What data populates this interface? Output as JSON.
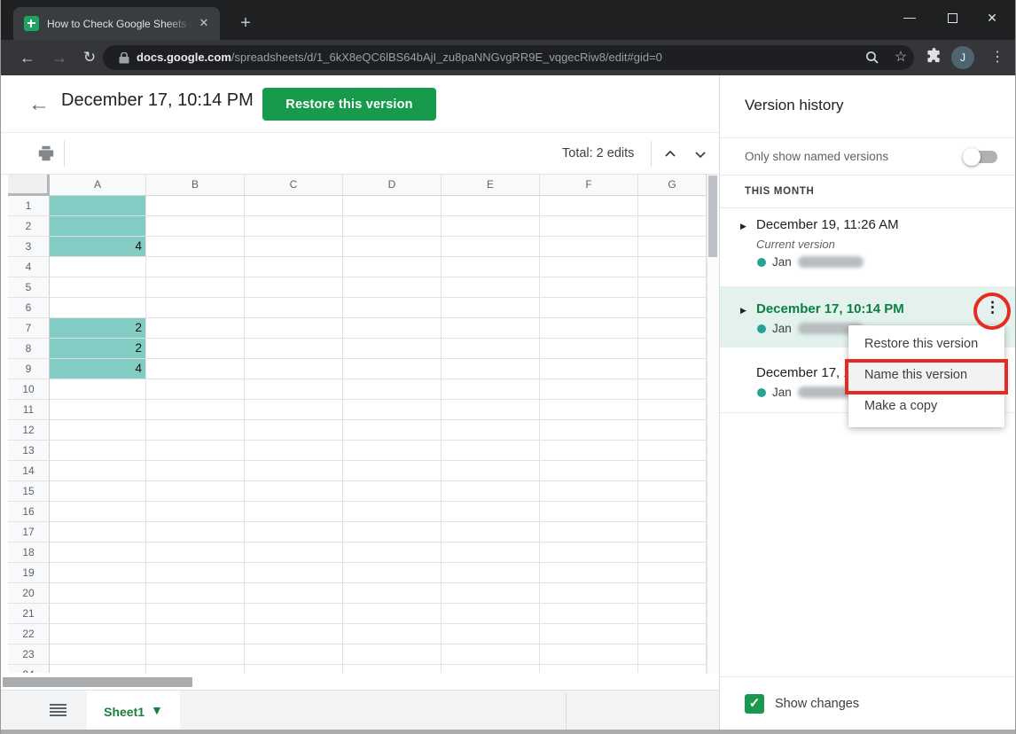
{
  "colors": {
    "accent_green": "#179a4b",
    "selected_green_text": "#0b8043",
    "highlight_teal": "#82ccc4",
    "selected_row_bg": "#e3f2ec",
    "annotation_red": "#e62b22",
    "author_dot": "#27a295"
  },
  "browser": {
    "tab_title": "How to Check Google Sheets Edi",
    "url_host": "docs.google.com",
    "url_path": "/spreadsheets/d/1_6kX8eQC6lBS64bAjI_zu8paNNGvgRR9E_vqgecRiw8/edit#gid=0",
    "avatar_initial": "J"
  },
  "icons": {
    "back": "←",
    "forward": "→",
    "reload": "↻",
    "tab_close": "✕",
    "new_tab": "+",
    "window_min": "—",
    "window_close": "✕",
    "kebab": "⋮",
    "star": "☆",
    "expand_triangle": "▶",
    "caret_down": "▼",
    "check": "✓"
  },
  "header": {
    "title": "December 17, 10:14 PM",
    "restore_button": "Restore this version"
  },
  "toolbar": {
    "total_edits": "Total: 2 edits"
  },
  "grid": {
    "columns": [
      "A",
      "B",
      "C",
      "D",
      "E",
      "F",
      "G"
    ],
    "row_count": 24,
    "cells": [
      {
        "col": "A",
        "row": 1,
        "value": "",
        "highlight": true
      },
      {
        "col": "A",
        "row": 2,
        "value": "",
        "highlight": true
      },
      {
        "col": "A",
        "row": 3,
        "value": "4",
        "highlight": true
      },
      {
        "col": "A",
        "row": 7,
        "value": "2",
        "highlight": true
      },
      {
        "col": "A",
        "row": 8,
        "value": "2",
        "highlight": true
      },
      {
        "col": "A",
        "row": 9,
        "value": "4",
        "highlight": true
      }
    ]
  },
  "sheet_bar": {
    "tab_label": "Sheet1"
  },
  "sidebar": {
    "title": "Version history",
    "toggle_label": "Only show named versions",
    "toggle_on": false,
    "section_label": "THIS MONTH",
    "versions": [
      {
        "date": "December 19, 11:26 AM",
        "note": "Current version",
        "author": "Jan"
      },
      {
        "date": "December 17, 10:14 PM",
        "author": "Jan"
      },
      {
        "date": "December 17, 1",
        "author": "Jan"
      }
    ],
    "menu": [
      "Restore this version",
      "Name this version",
      "Make a copy"
    ],
    "show_changes_label": "Show changes"
  }
}
